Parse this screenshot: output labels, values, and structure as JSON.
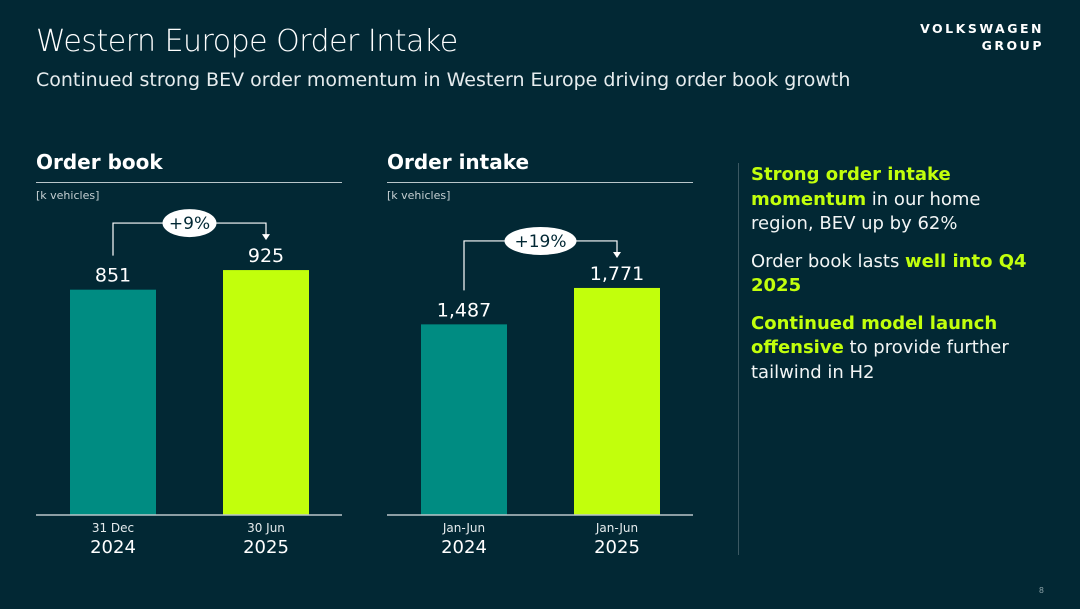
{
  "header": {
    "title": "Western Europe Order Intake",
    "subtitle": "Continued strong BEV order momentum in Western Europe driving order book growth",
    "logo_line1": "VOLKSWAGEN",
    "logo_line2": "GROUP"
  },
  "colors": {
    "background": "#022834",
    "teal": "#008c82",
    "lime": "#c2ff0c"
  },
  "chart_data": [
    {
      "type": "bar",
      "title": "Order book",
      "unit": "[k vehicles]",
      "categories": [
        {
          "top": "31 Dec",
          "bottom": "2024"
        },
        {
          "top": "30 Jun",
          "bottom": "2025"
        }
      ],
      "values": [
        851,
        925
      ],
      "labels": [
        "851",
        "925"
      ],
      "colors": [
        "#008c82",
        "#c2ff0c"
      ],
      "change": "+9%",
      "ylim": [
        0,
        1133
      ]
    },
    {
      "type": "bar",
      "title": "Order intake",
      "unit": "[k vehicles]",
      "categories": [
        {
          "top": "Jan-Jun",
          "bottom": "2024"
        },
        {
          "top": "Jan-Jun",
          "bottom": "2025"
        }
      ],
      "values": [
        1487,
        1771
      ],
      "labels": [
        "1,487",
        "1,771"
      ],
      "colors": [
        "#008c82",
        "#c2ff0c"
      ],
      "change": "+19%",
      "ylim": [
        0,
        2340
      ]
    }
  ],
  "bullets": [
    {
      "hl": "Strong order intake momentum",
      "rest": " in our home region, BEV up by 62%"
    },
    {
      "pre": "Order book lasts ",
      "hl": "well into Q4 2025"
    },
    {
      "hl": "Continued model launch offensive",
      "rest": " to provide further tailwind in H2"
    }
  ],
  "page_number": "8"
}
